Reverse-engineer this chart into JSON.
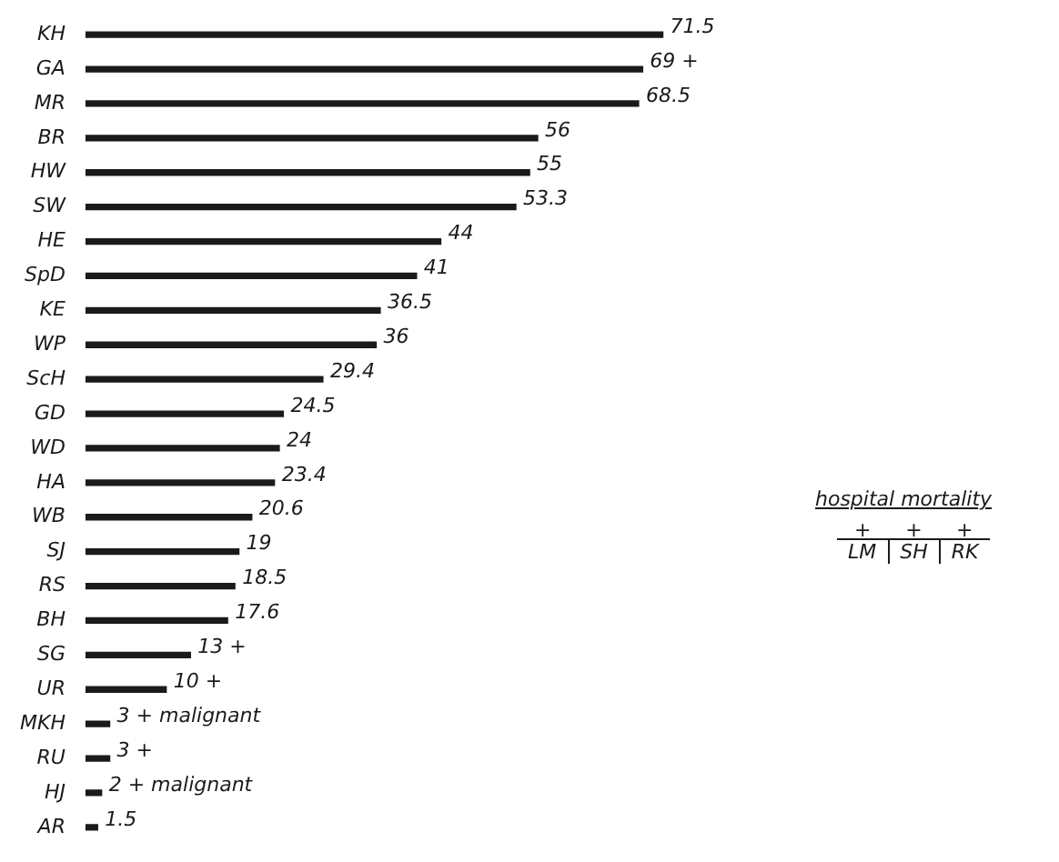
{
  "chart_data": {
    "type": "bar",
    "orientation": "horizontal",
    "color": "#1a1a1a",
    "categories": [
      "KH",
      "GA",
      "MR",
      "BR",
      "HW",
      "SW",
      "HE",
      "SpD",
      "KE",
      "WP",
      "ScH",
      "GD",
      "WD",
      "HA",
      "WB",
      "SJ",
      "RS",
      "BH",
      "SG",
      "UR",
      "MKH",
      "RU",
      "HJ",
      "AR"
    ],
    "values": [
      71.5,
      69,
      68.5,
      56,
      55,
      53.3,
      44,
      41,
      36.5,
      36,
      29.4,
      24.5,
      24,
      23.4,
      20.6,
      19,
      18.5,
      17.6,
      13,
      10,
      3,
      3,
      2,
      1.5
    ],
    "value_labels": [
      "71.5",
      "69 +",
      "68.5",
      "56",
      "55",
      "53.3",
      "44",
      "41",
      "36.5",
      "36",
      "29.4",
      "24.5",
      "24",
      "23.4",
      "20.6",
      "19",
      "18.5",
      "17.6",
      "13 +",
      "10 +",
      "3 + malignant",
      "3 +",
      "2 + malignant",
      "1.5"
    ],
    "annotations": [
      "hospital mortality",
      "+",
      "LM",
      "+",
      "SH",
      "+",
      "RK"
    ],
    "legend": false
  }
}
